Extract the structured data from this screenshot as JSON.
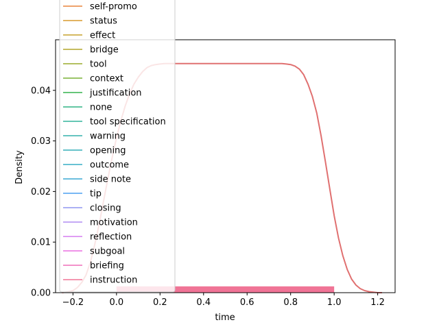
{
  "chart_data": {
    "type": "line",
    "subtype": "kde-density-with-rug",
    "xlabel": "time",
    "ylabel": "Density",
    "xlim": [
      -0.28,
      1.28
    ],
    "ylim": [
      0,
      0.05
    ],
    "x_ticks": [
      -0.2,
      0.0,
      0.2,
      0.4,
      0.6,
      0.8,
      1.0,
      1.2
    ],
    "x_tick_labels": [
      "−0.2",
      "0.0",
      "0.2",
      "0.4",
      "0.6",
      "0.8",
      "1.0",
      "1.2"
    ],
    "y_ticks": [
      0.0,
      0.01,
      0.02,
      0.03,
      0.04
    ],
    "y_tick_labels": [
      "0.00",
      "0.01",
      "0.02",
      "0.03",
      "0.04"
    ],
    "grid": false,
    "legend_position": "upper-left",
    "series": [
      {
        "name": "self-promo",
        "color": "#e8833a"
      },
      {
        "name": "status",
        "color": "#d99a2b"
      },
      {
        "name": "effect",
        "color": "#c7a12a"
      },
      {
        "name": "bridge",
        "color": "#b2a62a"
      },
      {
        "name": "tool",
        "color": "#9aab2a"
      },
      {
        "name": "context",
        "color": "#78b135"
      },
      {
        "name": "justification",
        "color": "#33b24d"
      },
      {
        "name": "none",
        "color": "#2eb383"
      },
      {
        "name": "tool specification",
        "color": "#31b39b"
      },
      {
        "name": "warning",
        "color": "#32b1ab"
      },
      {
        "name": "opening",
        "color": "#34afb9"
      },
      {
        "name": "outcome",
        "color": "#37adc5"
      },
      {
        "name": "side note",
        "color": "#39a9d4"
      },
      {
        "name": "tip",
        "color": "#4a9ff0"
      },
      {
        "name": "closing",
        "color": "#8f95f0"
      },
      {
        "name": "motivation",
        "color": "#b18cf2"
      },
      {
        "name": "reflection",
        "color": "#d57df0"
      },
      {
        "name": "subgoal",
        "color": "#ea6ee0"
      },
      {
        "name": "briefing",
        "color": "#ef6fb8"
      },
      {
        "name": "instruction",
        "color": "#f07496"
      }
    ],
    "density_curve": {
      "color": "#e07070",
      "x": [
        -0.25,
        -0.22,
        -0.2,
        -0.18,
        -0.16,
        -0.14,
        -0.12,
        -0.1,
        -0.08,
        -0.06,
        -0.04,
        -0.02,
        0.0,
        0.02,
        0.04,
        0.06,
        0.08,
        0.1,
        0.12,
        0.14,
        0.16,
        0.18,
        0.2,
        0.22,
        0.24,
        0.26,
        0.3,
        0.4,
        0.5,
        0.6,
        0.7,
        0.76,
        0.78,
        0.8,
        0.82,
        0.84,
        0.86,
        0.88,
        0.9,
        0.92,
        0.94,
        0.96,
        0.98,
        1.0,
        1.02,
        1.04,
        1.06,
        1.08,
        1.1,
        1.12,
        1.14,
        1.16,
        1.18,
        1.2,
        1.22
      ],
      "y": [
        0.0,
        0.0002,
        0.0004,
        0.001,
        0.002,
        0.0035,
        0.006,
        0.0095,
        0.0135,
        0.018,
        0.0225,
        0.0267,
        0.0306,
        0.034,
        0.0369,
        0.0393,
        0.0412,
        0.0426,
        0.0437,
        0.0445,
        0.0449,
        0.0451,
        0.0452,
        0.0453,
        0.0453,
        0.0453,
        0.0453,
        0.0453,
        0.0453,
        0.0453,
        0.0453,
        0.0453,
        0.0452,
        0.0451,
        0.0448,
        0.0442,
        0.0431,
        0.0412,
        0.0388,
        0.0355,
        0.031,
        0.0258,
        0.0205,
        0.0152,
        0.0108,
        0.0073,
        0.0046,
        0.0027,
        0.0015,
        0.0008,
        0.0004,
        0.0002,
        0.0001,
        0.0,
        0.0
      ]
    },
    "rug": {
      "color": "#f07496",
      "x_range": [
        0.0,
        1.0
      ],
      "height_fraction": 0.025
    }
  }
}
